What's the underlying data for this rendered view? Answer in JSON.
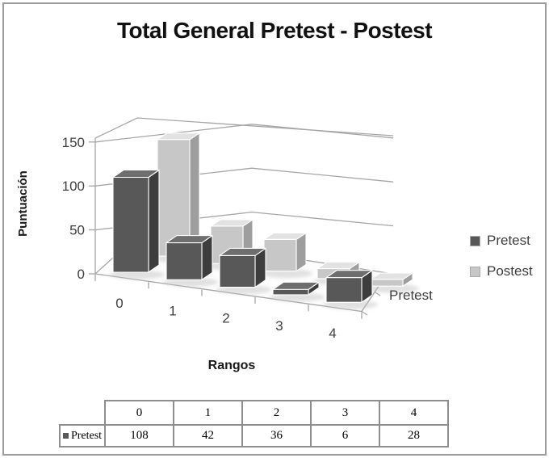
{
  "title": "Total General Pretest - Postest",
  "chart_data": {
    "type": "bar",
    "subtype": "3d-column",
    "title": "Total General Pretest - Postest",
    "categories": [
      "0",
      "1",
      "2",
      "3",
      "4"
    ],
    "series": [
      {
        "name": "Pretest",
        "values": [
          108,
          42,
          36,
          6,
          28
        ],
        "color": "#585858"
      },
      {
        "name": "Postest",
        "values": [
          140,
          45,
          38,
          12,
          8
        ],
        "color": "#c7c7c7"
      }
    ],
    "xlabel": "Rangos",
    "ylabel": "Puntuación",
    "series_axis_label": "Pretest",
    "ylim": [
      0,
      150
    ],
    "yticks": [
      0,
      50,
      100,
      150
    ],
    "grid": true,
    "legend_position": "right"
  },
  "legend": {
    "items": [
      {
        "label": "Pretest",
        "color": "#585858"
      },
      {
        "label": "Postest",
        "color": "#c7c7c7"
      }
    ]
  },
  "colors": {
    "pretest_front": "#585858",
    "pretest_top": "#6e6e6e",
    "pretest_side": "#3d3d3d",
    "postest_front": "#c7c7c7",
    "postest_top": "#e2e2e2",
    "postest_side": "#9e9e9e",
    "axis_gray": "#a6a6a6",
    "text_gray": "#3f3f3f"
  },
  "table": {
    "columns": [
      "0",
      "1",
      "2",
      "3",
      "4"
    ],
    "rows": [
      {
        "label": "Pretest",
        "values": [
          "108",
          "42",
          "36",
          "6",
          "28"
        ]
      }
    ]
  }
}
